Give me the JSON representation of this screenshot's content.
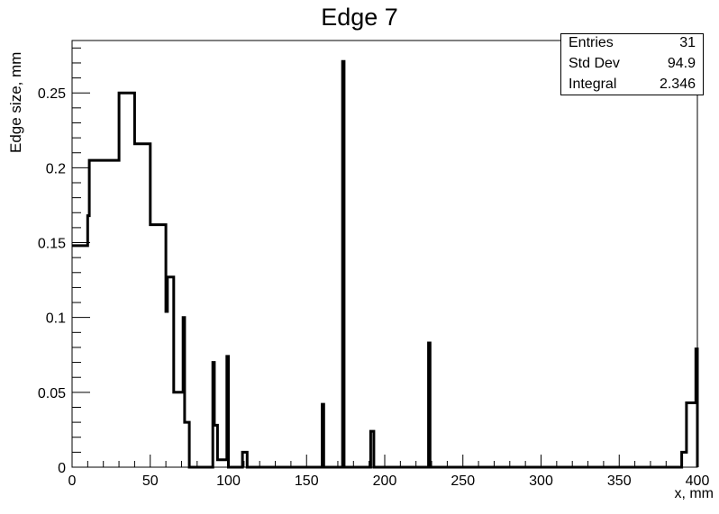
{
  "chart_data": {
    "type": "histogram",
    "title": "Edge 7",
    "xlabel": "x, mm",
    "ylabel": "Edge size, mm",
    "xlim": [
      0,
      400
    ],
    "ylim": [
      0,
      0.285
    ],
    "xticks": [
      0,
      50,
      100,
      150,
      200,
      250,
      300,
      350,
      400
    ],
    "yticks": [
      0,
      0.05,
      0.1,
      0.15,
      0.2,
      0.25
    ],
    "ytick_labels": [
      "0",
      "0.05",
      "0.1",
      "0.15",
      "0.2",
      "0.25"
    ],
    "grid": false,
    "line_color": "#000000",
    "steps": [
      [
        0,
        0.148
      ],
      [
        10,
        0.168
      ],
      [
        11,
        0.205
      ],
      [
        30,
        0.25
      ],
      [
        40,
        0.216
      ],
      [
        50,
        0.162
      ],
      [
        60,
        0.104
      ],
      [
        61,
        0.127
      ],
      [
        65,
        0.05
      ],
      [
        71,
        0.1
      ],
      [
        72,
        0.03
      ],
      [
        75,
        0
      ],
      [
        90,
        0.07
      ],
      [
        91,
        0.028
      ],
      [
        93,
        0.005
      ],
      [
        99,
        0.074
      ],
      [
        100,
        0
      ],
      [
        109,
        0.01
      ],
      [
        112,
        0
      ],
      [
        160,
        0.042
      ],
      [
        161,
        0
      ],
      [
        173,
        0.271
      ],
      [
        174,
        0
      ],
      [
        191,
        0.024
      ],
      [
        193,
        0
      ],
      [
        228,
        0.083
      ],
      [
        229,
        0
      ],
      [
        390,
        0.01
      ],
      [
        393,
        0.043
      ],
      [
        399,
        0.079
      ],
      [
        400,
        0
      ]
    ]
  },
  "stats": [
    {
      "label": "Entries",
      "value": "31"
    },
    {
      "label": "Std Dev",
      "value": "94.9"
    },
    {
      "label": "Integral",
      "value": "2.346"
    }
  ]
}
